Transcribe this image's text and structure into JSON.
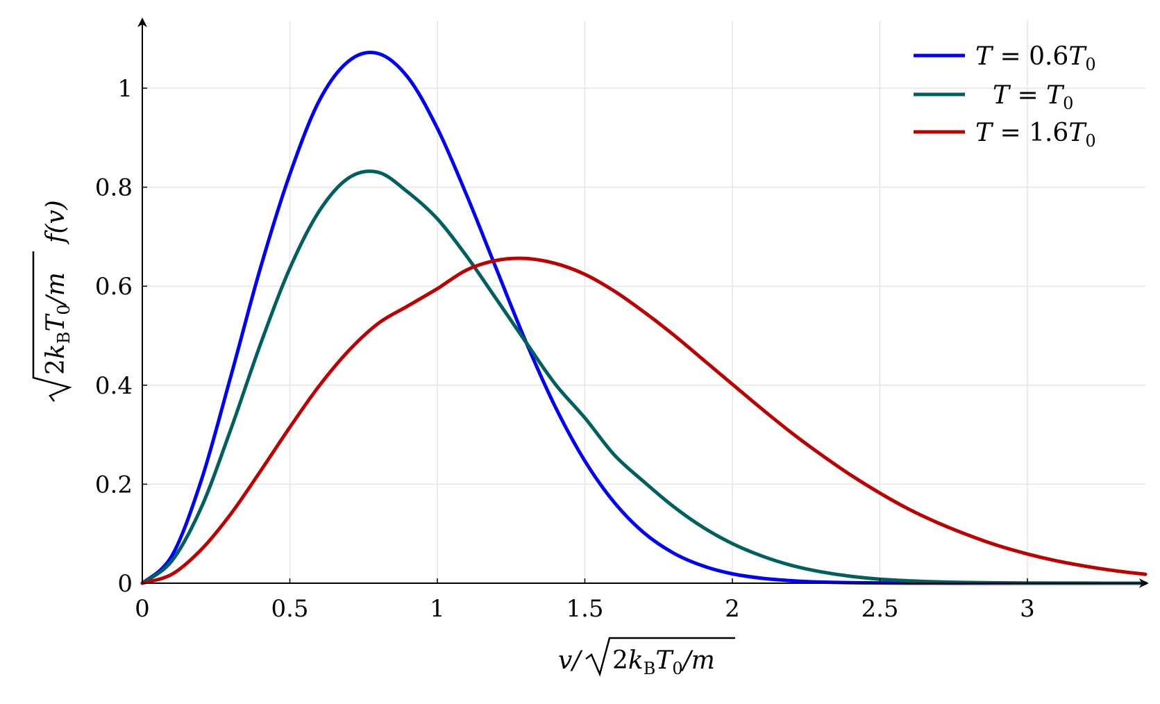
{
  "chart_data": {
    "type": "line",
    "xlim": [
      0,
      3.4
    ],
    "ylim": [
      0,
      1.1
    ],
    "x_ticks": [
      0,
      0.5,
      1,
      1.5,
      2,
      2.5,
      3
    ],
    "x_tick_labels": [
      "0",
      "0.5",
      "1",
      "1.5",
      "2",
      "2.5",
      "3"
    ],
    "y_ticks": [
      0,
      0.2,
      0.4,
      0.6,
      0.8,
      1
    ],
    "y_tick_labels": [
      "0",
      "0.2",
      "0.4",
      "0.6",
      "0.8",
      "1"
    ],
    "grid": true,
    "legend_position": "top-right",
    "xlabel": {
      "prefix": "v/",
      "radicand_2": "2",
      "radicand_k": "k",
      "radicand_B": "B",
      "radicand_T": "T",
      "radicand_0": "0",
      "radicand_rest": "/m"
    },
    "ylabel": {
      "radicand_2": "2",
      "radicand_k": "k",
      "radicand_B": "B",
      "radicand_T": "T",
      "radicand_0": "0",
      "radicand_rest": "/m",
      "func": "f(v)"
    },
    "x": [
      0,
      0.1,
      0.2,
      0.3,
      0.4,
      0.5,
      0.6,
      0.7,
      0.8,
      0.9,
      1.0,
      1.1,
      1.2,
      1.3,
      1.4,
      1.5,
      1.6,
      1.7,
      1.8,
      1.9,
      2.0,
      2.1,
      2.2,
      2.3,
      2.4,
      2.5,
      2.6,
      2.7,
      2.8,
      2.9,
      3.0,
      3.1,
      3.2,
      3.3,
      3.4
    ],
    "series": [
      {
        "name": {
          "lhs": "T",
          "eq": " = ",
          "coef": "0.6",
          "T": "T",
          "sub": "0"
        },
        "color": "#0000ff",
        "values": [
          0,
          0.055,
          0.208,
          0.418,
          0.636,
          0.826,
          0.975,
          1.055,
          1.07,
          1.022,
          0.919,
          0.783,
          0.635,
          0.488,
          0.356,
          0.247,
          0.163,
          0.102,
          0.061,
          0.035,
          0.019,
          0.01,
          0.005,
          0.0023,
          0.0011,
          0.0005,
          0.0002,
          0.0001,
          0,
          0,
          0,
          0,
          0,
          0,
          0
        ]
      },
      {
        "name": {
          "lhs": "T",
          "eq": " = ",
          "coef": "",
          "T": "T",
          "sub": "0"
        },
        "color": "#006060",
        "values": [
          0,
          0.045,
          0.153,
          0.311,
          0.482,
          0.636,
          0.752,
          0.819,
          0.83,
          0.79,
          0.736,
          0.66,
          0.574,
          0.487,
          0.402,
          0.334,
          0.259,
          0.205,
          0.155,
          0.113,
          0.08,
          0.055,
          0.036,
          0.023,
          0.014,
          0.0082,
          0.0048,
          0.0027,
          0.0014,
          0.0007,
          0.0003,
          0.0002,
          0.0001,
          0,
          0
        ]
      },
      {
        "name": {
          "lhs": "T",
          "eq": " = ",
          "coef": "1.6",
          "T": "T",
          "sub": "0"
        },
        "color": "#c00000",
        "values": [
          0,
          0.018,
          0.068,
          0.14,
          0.226,
          0.315,
          0.399,
          0.47,
          0.525,
          0.56,
          0.595,
          0.633,
          0.652,
          0.656,
          0.646,
          0.624,
          0.59,
          0.548,
          0.502,
          0.452,
          0.402,
          0.352,
          0.304,
          0.26,
          0.219,
          0.182,
          0.149,
          0.121,
          0.097,
          0.076,
          0.059,
          0.045,
          0.034,
          0.025,
          0.018
        ]
      }
    ]
  }
}
